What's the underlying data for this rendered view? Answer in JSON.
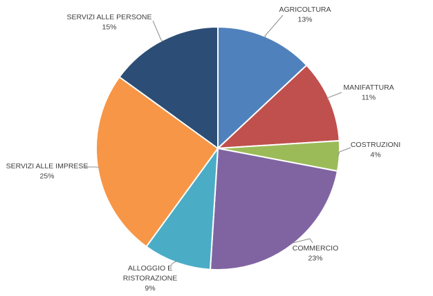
{
  "chart_data": {
    "type": "pie",
    "title": "",
    "legend": "none",
    "slices": [
      {
        "label": "AGRICOLTURA",
        "value": 13,
        "value_label": "13%",
        "color": "#4f81bd"
      },
      {
        "label": "MANIFATTURA",
        "value": 11,
        "value_label": "11%",
        "color": "#c0504d"
      },
      {
        "label": "COSTRUZIONI",
        "value": 4,
        "value_label": "4%",
        "color": "#9bbb59"
      },
      {
        "label": "COMMERCIO",
        "value": 23,
        "value_label": "23%",
        "color": "#8064a2"
      },
      {
        "label": "ALLOGGIO E RISTORAZIONE",
        "label_lines": [
          "ALLOGGIO E",
          "RISTORAZIONE"
        ],
        "value": 9,
        "value_label": "9%",
        "color": "#4bacc6"
      },
      {
        "label": "SERVIZI ALLE IMPRESE",
        "value": 25,
        "value_label": "25%",
        "color": "#f79646"
      },
      {
        "label": "SERVIZI ALLE PERSONE",
        "value": 15,
        "value_label": "15%",
        "color": "#2c4d75"
      }
    ]
  }
}
